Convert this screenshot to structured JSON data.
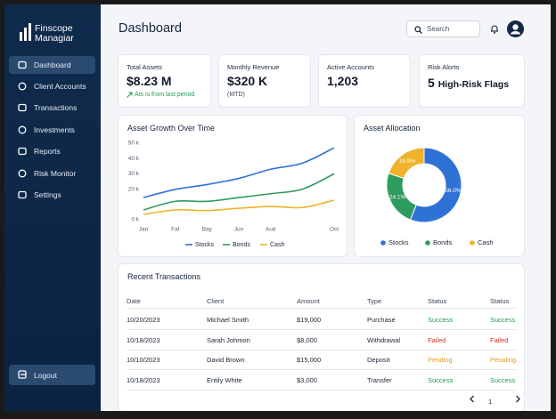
{
  "sidebar": {
    "brand": [
      "Finscope",
      "Managiar"
    ],
    "menu": [
      "Dashboard",
      "Client Accounts",
      "Transactions",
      "Investments",
      "Reports",
      "Risk Monitor",
      "Settings"
    ],
    "active": 0,
    "logout": "Logout"
  },
  "header": {
    "title": "Dashboard",
    "search": "Search"
  },
  "kpis": [
    {
      "label": "Total Assets",
      "value": "$8.23 M",
      "note": "Ats is from last period"
    },
    {
      "label": "Monthly Revenue",
      "value": "$320 K",
      "note": "(MTD)"
    },
    {
      "label": "Active Accounts",
      "value": "1,203"
    },
    {
      "label": "Risk Alorts",
      "value": "5",
      "suffix": "High-Risk Flags"
    }
  ],
  "chart_data": [
    {
      "type": "line",
      "title": "Asset Growth Over Time",
      "categories": [
        "Jan",
        "Fal",
        "Bay",
        "Jun",
        "Aud",
        null,
        "Oct"
      ],
      "series": [
        {
          "name": "Stocks",
          "color": "#2f72d6",
          "values": [
            14.5,
            19.8,
            23,
            27,
            33,
            37,
            47
          ]
        },
        {
          "name": "Bonds",
          "color": "#2e9b5f",
          "values": [
            6.4,
            12,
            12,
            14.5,
            17,
            20,
            30
          ]
        },
        {
          "name": "Cash",
          "color": "#f0b22a",
          "values": [
            3.5,
            6.4,
            6,
            7.5,
            8.7,
            8,
            12.8
          ]
        }
      ],
      "ylim": [
        0,
        50
      ],
      "yticks": [
        {
          "value": 50,
          "label": "50 k"
        },
        {
          "value": 40,
          "label": "40 k"
        },
        {
          "value": 30,
          "label": "30 k"
        },
        {
          "value": 20,
          "label": "20 k"
        },
        {
          "value": 0,
          "label": "0 k"
        }
      ],
      "legend": "bottom"
    },
    {
      "type": "pie",
      "title": "Asset Allocation",
      "categories": [
        "Stocks",
        "Bonds",
        "Cash"
      ],
      "values": [
        56,
        24.1,
        19.9
      ],
      "value_labels": [
        "56.0%",
        "24.1%",
        "19.9%"
      ],
      "colors": [
        "#2f72d6",
        "#2e9b5f",
        "#f0b22a"
      ],
      "donut": true,
      "legend": "bottom"
    }
  ],
  "transactions": {
    "title": "Recent Transactions",
    "columns": [
      "Date",
      "Client",
      "Amount",
      "Type",
      "Status",
      "Status"
    ],
    "rows": [
      [
        "10/20/2023",
        "Michael Smith",
        "$19,000",
        "Purchase",
        "Success",
        "Success"
      ],
      [
        "10/18/2023",
        "Sarah Johmon",
        "$8,000",
        "Withdrawal",
        "Failed",
        "Failed"
      ],
      [
        "10/10/2023",
        "David Brown",
        "$15,000",
        "Deposit",
        "Pending",
        "Penaling"
      ],
      [
        "10/18/2023",
        "Entily White",
        "$3,000",
        "Transfer",
        "Success",
        "Success"
      ]
    ],
    "status_colors": [
      "#1e9b4f",
      "#d93025",
      "#e39a1b",
      "#1e9b4f"
    ],
    "page": "1"
  }
}
